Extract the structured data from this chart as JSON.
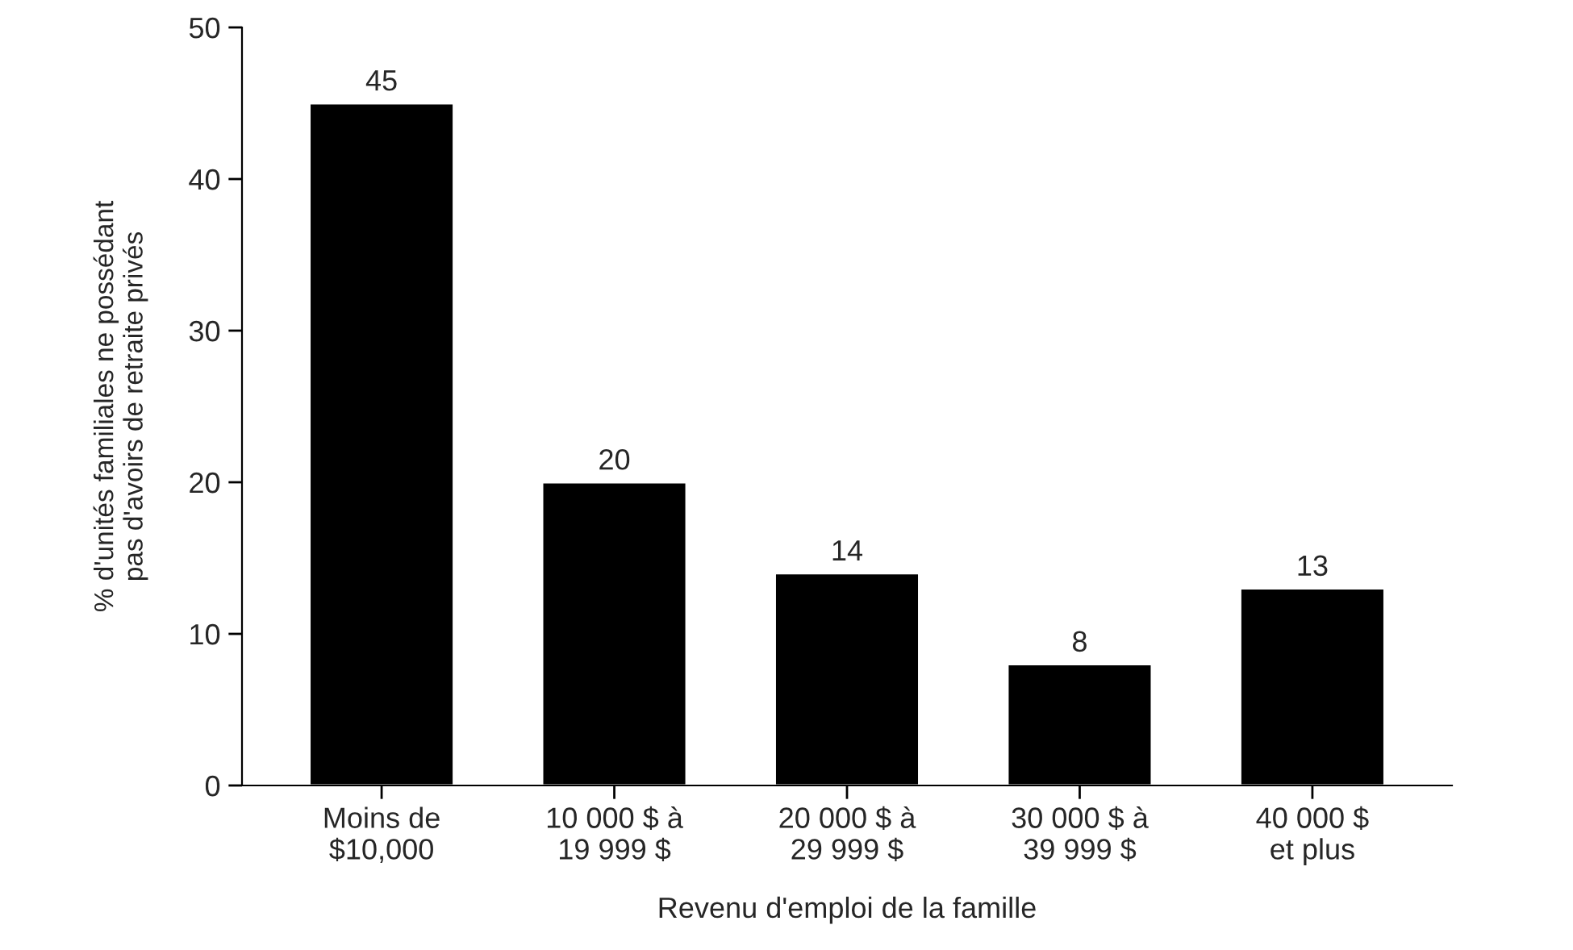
{
  "chart_data": {
    "type": "bar",
    "xlabel": "Revenu d'emploi de la famille",
    "ylabel": "% d'unités familiales ne possédant\npas d'avoirs de retraite privés",
    "categories": [
      "Moins de\n$10,000",
      "10 000 $ à\n19 999 $",
      "20 000 $ à\n29 999 $",
      "30 000 $ à\n39 999 $",
      "40 000 $\net plus"
    ],
    "values": [
      45,
      20,
      14,
      8,
      13
    ],
    "color": "#000000",
    "ylim": [
      0,
      50
    ],
    "yticks": [
      0,
      10,
      20,
      30,
      40,
      50
    ],
    "grid": false,
    "data_labels": true
  }
}
